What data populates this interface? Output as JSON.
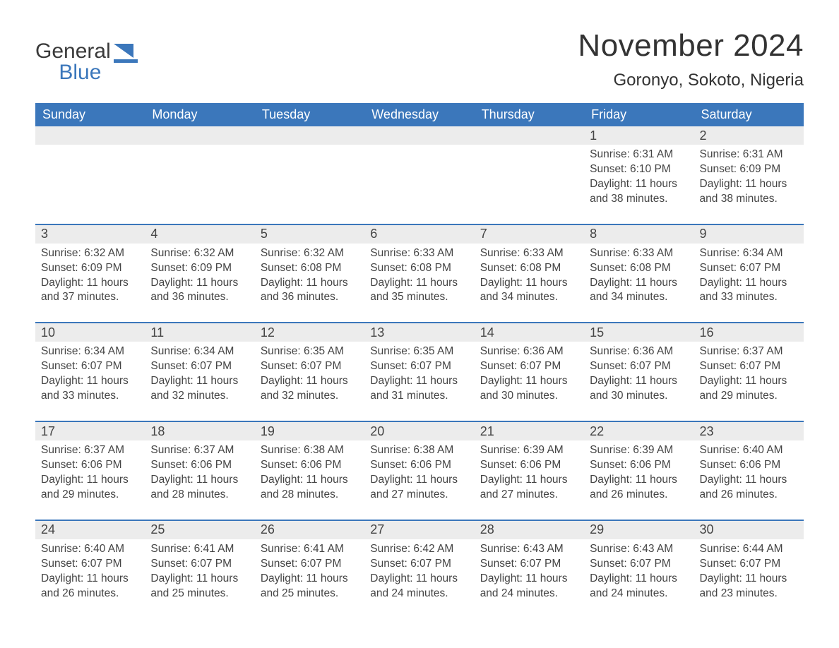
{
  "logo": {
    "word1": "General",
    "word2": "Blue",
    "sail_color": "#3b77bb"
  },
  "title": "November 2024",
  "location": "Goronyo, Sokoto, Nigeria",
  "header_bg": "#3b77bb",
  "daynum_bg": "#ececec",
  "text_color": "#3a3a3a",
  "days_of_week": [
    "Sunday",
    "Monday",
    "Tuesday",
    "Wednesday",
    "Thursday",
    "Friday",
    "Saturday"
  ],
  "weeks": [
    [
      null,
      null,
      null,
      null,
      null,
      {
        "n": "1",
        "sunrise": "6:31 AM",
        "sunset": "6:10 PM",
        "daylight": "11 hours and 38 minutes."
      },
      {
        "n": "2",
        "sunrise": "6:31 AM",
        "sunset": "6:09 PM",
        "daylight": "11 hours and 38 minutes."
      }
    ],
    [
      {
        "n": "3",
        "sunrise": "6:32 AM",
        "sunset": "6:09 PM",
        "daylight": "11 hours and 37 minutes."
      },
      {
        "n": "4",
        "sunrise": "6:32 AM",
        "sunset": "6:09 PM",
        "daylight": "11 hours and 36 minutes."
      },
      {
        "n": "5",
        "sunrise": "6:32 AM",
        "sunset": "6:08 PM",
        "daylight": "11 hours and 36 minutes."
      },
      {
        "n": "6",
        "sunrise": "6:33 AM",
        "sunset": "6:08 PM",
        "daylight": "11 hours and 35 minutes."
      },
      {
        "n": "7",
        "sunrise": "6:33 AM",
        "sunset": "6:08 PM",
        "daylight": "11 hours and 34 minutes."
      },
      {
        "n": "8",
        "sunrise": "6:33 AM",
        "sunset": "6:08 PM",
        "daylight": "11 hours and 34 minutes."
      },
      {
        "n": "9",
        "sunrise": "6:34 AM",
        "sunset": "6:07 PM",
        "daylight": "11 hours and 33 minutes."
      }
    ],
    [
      {
        "n": "10",
        "sunrise": "6:34 AM",
        "sunset": "6:07 PM",
        "daylight": "11 hours and 33 minutes."
      },
      {
        "n": "11",
        "sunrise": "6:34 AM",
        "sunset": "6:07 PM",
        "daylight": "11 hours and 32 minutes."
      },
      {
        "n": "12",
        "sunrise": "6:35 AM",
        "sunset": "6:07 PM",
        "daylight": "11 hours and 32 minutes."
      },
      {
        "n": "13",
        "sunrise": "6:35 AM",
        "sunset": "6:07 PM",
        "daylight": "11 hours and 31 minutes."
      },
      {
        "n": "14",
        "sunrise": "6:36 AM",
        "sunset": "6:07 PM",
        "daylight": "11 hours and 30 minutes."
      },
      {
        "n": "15",
        "sunrise": "6:36 AM",
        "sunset": "6:07 PM",
        "daylight": "11 hours and 30 minutes."
      },
      {
        "n": "16",
        "sunrise": "6:37 AM",
        "sunset": "6:07 PM",
        "daylight": "11 hours and 29 minutes."
      }
    ],
    [
      {
        "n": "17",
        "sunrise": "6:37 AM",
        "sunset": "6:06 PM",
        "daylight": "11 hours and 29 minutes."
      },
      {
        "n": "18",
        "sunrise": "6:37 AM",
        "sunset": "6:06 PM",
        "daylight": "11 hours and 28 minutes."
      },
      {
        "n": "19",
        "sunrise": "6:38 AM",
        "sunset": "6:06 PM",
        "daylight": "11 hours and 28 minutes."
      },
      {
        "n": "20",
        "sunrise": "6:38 AM",
        "sunset": "6:06 PM",
        "daylight": "11 hours and 27 minutes."
      },
      {
        "n": "21",
        "sunrise": "6:39 AM",
        "sunset": "6:06 PM",
        "daylight": "11 hours and 27 minutes."
      },
      {
        "n": "22",
        "sunrise": "6:39 AM",
        "sunset": "6:06 PM",
        "daylight": "11 hours and 26 minutes."
      },
      {
        "n": "23",
        "sunrise": "6:40 AM",
        "sunset": "6:06 PM",
        "daylight": "11 hours and 26 minutes."
      }
    ],
    [
      {
        "n": "24",
        "sunrise": "6:40 AM",
        "sunset": "6:07 PM",
        "daylight": "11 hours and 26 minutes."
      },
      {
        "n": "25",
        "sunrise": "6:41 AM",
        "sunset": "6:07 PM",
        "daylight": "11 hours and 25 minutes."
      },
      {
        "n": "26",
        "sunrise": "6:41 AM",
        "sunset": "6:07 PM",
        "daylight": "11 hours and 25 minutes."
      },
      {
        "n": "27",
        "sunrise": "6:42 AM",
        "sunset": "6:07 PM",
        "daylight": "11 hours and 24 minutes."
      },
      {
        "n": "28",
        "sunrise": "6:43 AM",
        "sunset": "6:07 PM",
        "daylight": "11 hours and 24 minutes."
      },
      {
        "n": "29",
        "sunrise": "6:43 AM",
        "sunset": "6:07 PM",
        "daylight": "11 hours and 24 minutes."
      },
      {
        "n": "30",
        "sunrise": "6:44 AM",
        "sunset": "6:07 PM",
        "daylight": "11 hours and 23 minutes."
      }
    ]
  ],
  "labels": {
    "sunrise": "Sunrise: ",
    "sunset": "Sunset: ",
    "daylight": "Daylight: "
  }
}
